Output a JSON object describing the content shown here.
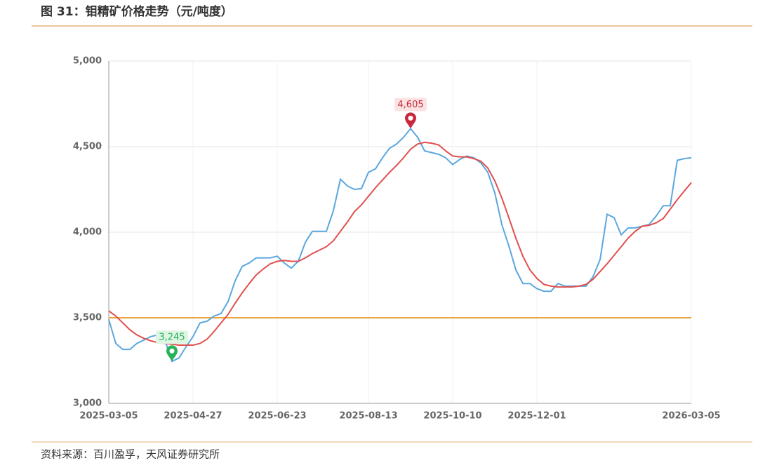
{
  "chart_data": {
    "type": "line",
    "title": "图 31：钼精矿价格走势（元/吨度）",
    "source": "资料来源：百川盈孚，天风证券研究所",
    "categories": [
      "2025-03-05",
      null,
      null,
      null,
      null,
      null,
      null,
      null,
      null,
      null,
      null,
      null,
      "2025-04-27",
      null,
      null,
      null,
      null,
      null,
      null,
      null,
      null,
      null,
      null,
      null,
      "2025-06-23",
      null,
      null,
      null,
      null,
      null,
      null,
      null,
      null,
      null,
      null,
      null,
      null,
      "2025-08-13",
      null,
      null,
      null,
      null,
      null,
      null,
      null,
      null,
      null,
      null,
      null,
      "2025-10-10",
      null,
      null,
      null,
      null,
      null,
      null,
      null,
      null,
      null,
      null,
      null,
      "2025-12-01",
      null,
      null,
      null,
      null,
      null,
      null,
      null,
      null,
      null,
      null,
      null,
      null,
      null,
      null,
      null,
      null,
      null,
      null,
      null,
      null,
      null,
      "2026-03-05"
    ],
    "series": [
      {
        "color": "#5aa7de",
        "values": [
          3490,
          3350,
          3315,
          3315,
          3350,
          3370,
          3390,
          3400,
          3370,
          3245,
          3265,
          3330,
          3390,
          3470,
          3480,
          3510,
          3525,
          3595,
          3715,
          3800,
          3820,
          3850,
          3850,
          3850,
          3860,
          3820,
          3790,
          3830,
          3940,
          4005,
          4005,
          4005,
          4125,
          4310,
          4270,
          4250,
          4255,
          4350,
          4370,
          4435,
          4490,
          4515,
          4555,
          4605,
          4555,
          4475,
          4465,
          4455,
          4435,
          4395,
          4425,
          4445,
          4435,
          4405,
          4350,
          4230,
          4045,
          3920,
          3780,
          3700,
          3700,
          3670,
          3655,
          3655,
          3700,
          3685,
          3685,
          3685,
          3685,
          3740,
          3840,
          4105,
          4085,
          3985,
          4025,
          4025,
          4035,
          4045,
          4095,
          4155,
          4155,
          4420,
          4430,
          4435
        ],
        "value_labels": [
          null,
          null,
          null,
          null,
          null,
          null,
          null,
          null,
          null,
          "3,245",
          null,
          null,
          null,
          null,
          null,
          null,
          null,
          null,
          null,
          null,
          null,
          null,
          null,
          null,
          null,
          null,
          null,
          null,
          null,
          null,
          null,
          null,
          null,
          null,
          null,
          null,
          null,
          null,
          null,
          null,
          null,
          null,
          null,
          "4,605",
          null,
          null,
          null,
          null,
          null,
          null,
          null,
          null,
          null,
          null,
          null,
          null,
          null,
          null,
          null,
          null,
          null,
          null,
          null,
          null,
          null,
          null,
          null,
          null,
          null,
          null,
          null,
          null,
          null,
          null,
          null,
          null,
          null,
          null,
          null,
          null,
          null,
          null,
          null,
          null
        ]
      },
      {
        "color": "#e0504f",
        "values": [
          3540,
          3510,
          3470,
          3430,
          3400,
          3380,
          3365,
          3355,
          3350,
          3345,
          3340,
          3340,
          3340,
          3350,
          3375,
          3420,
          3470,
          3520,
          3585,
          3645,
          3700,
          3750,
          3785,
          3815,
          3830,
          3835,
          3830,
          3830,
          3850,
          3875,
          3895,
          3915,
          3950,
          4005,
          4060,
          4120,
          4160,
          4210,
          4260,
          4305,
          4350,
          4390,
          4435,
          4485,
          4515,
          4525,
          4520,
          4510,
          4475,
          4445,
          4440,
          4440,
          4430,
          4415,
          4375,
          4300,
          4200,
          4085,
          3965,
          3860,
          3780,
          3730,
          3695,
          3685,
          3680,
          3680,
          3680,
          3685,
          3695,
          3725,
          3770,
          3815,
          3865,
          3915,
          3965,
          4005,
          4035,
          4040,
          4055,
          4080,
          4135,
          4190,
          4240,
          4290
        ]
      }
    ],
    "hline": {
      "value": 3500,
      "color": "#e9a640"
    },
    "ylim": [
      3000,
      5000
    ],
    "yticks": [
      {
        "value": 3000,
        "label": "3,000"
      },
      {
        "value": 3500,
        "label": "3,500"
      },
      {
        "value": 4000,
        "label": "4,000"
      },
      {
        "value": 4500,
        "label": "4,500"
      },
      {
        "value": 5000,
        "label": "5,000"
      }
    ],
    "grid": true
  }
}
